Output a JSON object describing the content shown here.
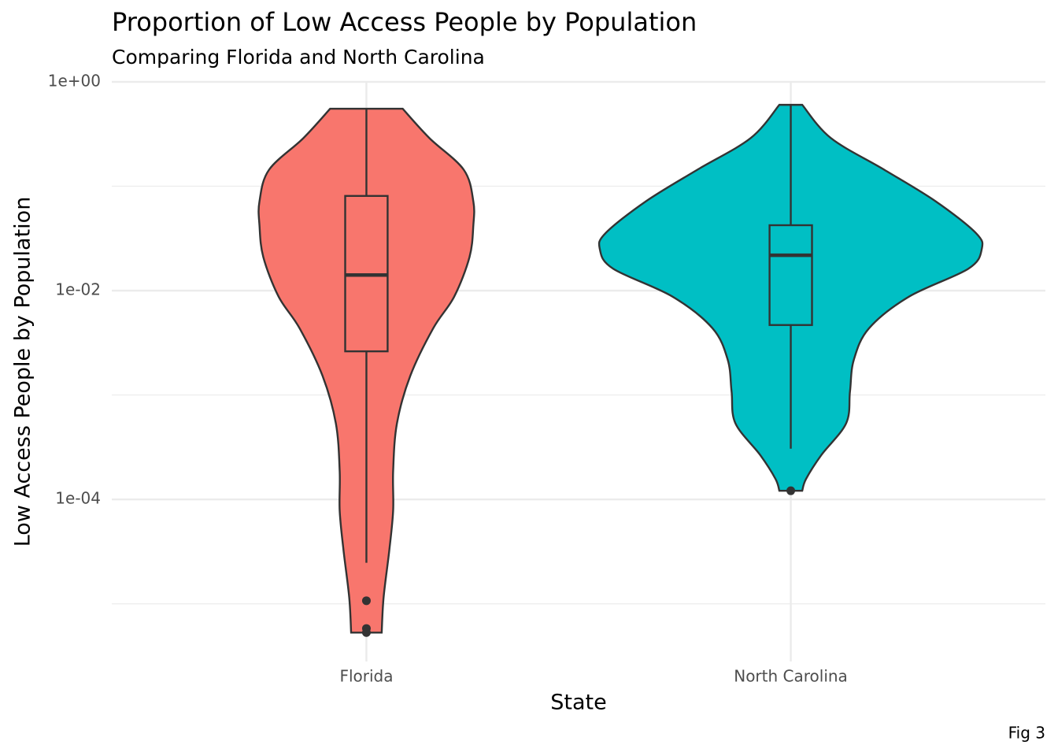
{
  "chart_data": {
    "type": "violin",
    "title": "Proportion of Low Access People by Population",
    "subtitle": "Comparing Florida and North Carolina",
    "x_label": "State",
    "y_label": "Low Access People by Population",
    "caption": "Fig 3",
    "log_y": true,
    "grid": true,
    "ylim": [
      2.8e-06,
      1.07
    ],
    "yticks": [
      {
        "value": 1,
        "label": "1e+00"
      },
      {
        "value": 0.01,
        "label": "1e-02"
      },
      {
        "value": 0.0001,
        "label": "1e-04"
      }
    ],
    "yminor": [
      0.1,
      0.001,
      1e-05
    ],
    "categories": [
      "Florida",
      "North Carolina"
    ],
    "series": [
      {
        "color": "#F8766D",
        "box": {
          "whisker_high": 0.552,
          "q3": 0.0807,
          "median": 0.0141,
          "q1": 0.00262,
          "whisker_low": 2.47e-05
        },
        "outliers": [
          1.07e-05,
          5.8e-06,
          5.3e-06
        ],
        "violin": {
          "y": [
            0.552,
            0.289,
            0.1436,
            0.0714,
            0.0423,
            0.021,
            0.00877,
            0.00436,
            0.00153,
            0.000536,
            0.000188,
            7.83e-05,
            3.27e-05,
            1.15e-05,
            5.3e-06
          ],
          "width": [
            0.19,
            0.33,
            0.51,
            0.56,
            0.56,
            0.54,
            0.46,
            0.35,
            0.23,
            0.16,
            0.14,
            0.14,
            0.12,
            0.09,
            0.08
          ]
        }
      },
      {
        "color": "#00BFC4",
        "box": {
          "whisker_high": 0.602,
          "q3": 0.0423,
          "median": 0.0218,
          "q1": 0.00468,
          "whisker_low": 0.000306
        },
        "outliers": [
          0.000121
        ],
        "violin": {
          "y": [
            0.602,
            0.289,
            0.1436,
            0.0714,
            0.0355,
            0.025,
            0.0162,
            0.00877,
            0.00436,
            0.00217,
            0.00108,
            0.000536,
            0.000266,
            0.000157,
            0.000121
          ],
          "width": [
            0.06,
            0.21,
            0.49,
            0.76,
            0.97,
            1.0,
            0.93,
            0.62,
            0.41,
            0.33,
            0.31,
            0.29,
            0.16,
            0.08,
            0.06
          ]
        }
      }
    ]
  }
}
